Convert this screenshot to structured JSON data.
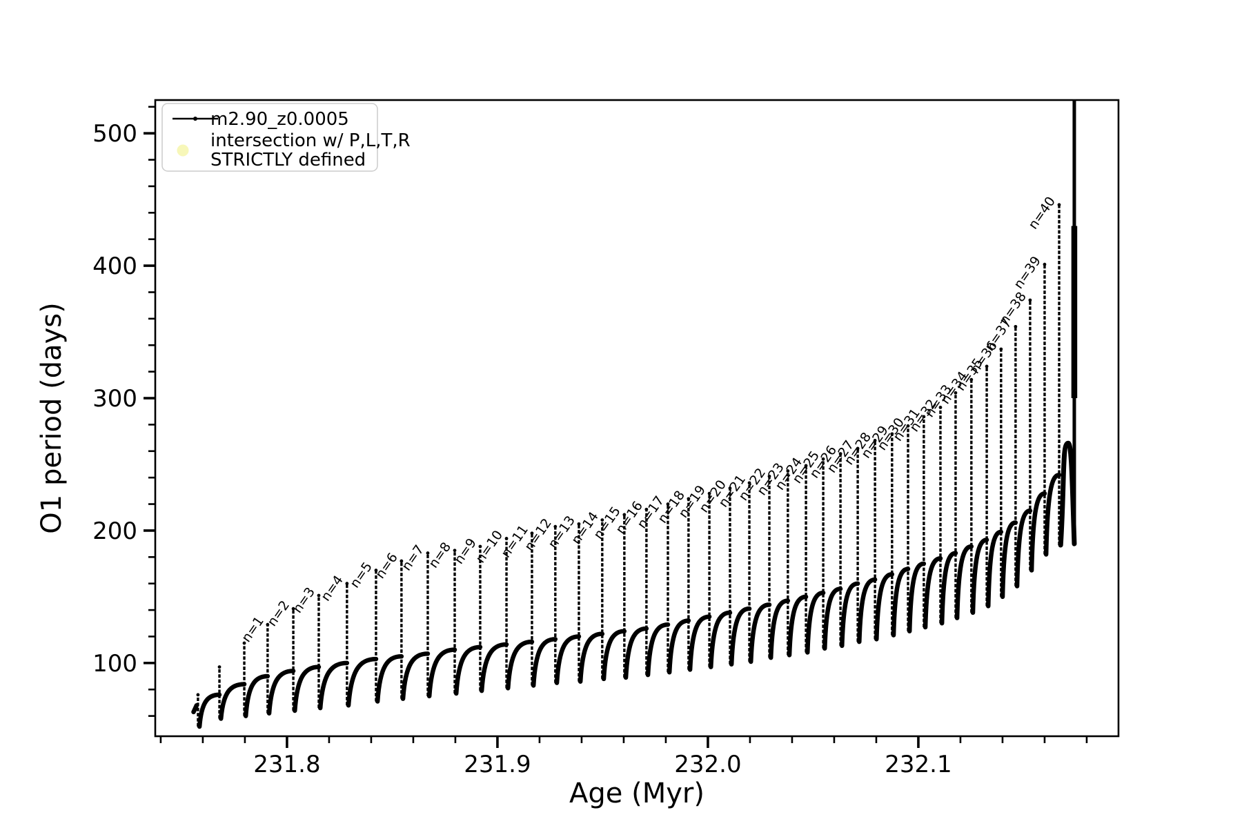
{
  "figure": {
    "background": "#ffffff"
  },
  "legend": {
    "series_label": "m2.90_z0.0005",
    "intersection_label_line1": "intersection w/ P,L,T,R",
    "intersection_label_line2": "STRICTLY defined",
    "marker_color": "#f7f7b9",
    "line_color": "#000000",
    "border_color": "#cccccc"
  },
  "chart_data": {
    "type": "line",
    "title": "",
    "xlabel": "Age (Myr)",
    "ylabel": "O1 period (days)",
    "xlim": [
      231.7374,
      232.1951
    ],
    "ylim": [
      44.7,
      525.1
    ],
    "x_major_ticks": [
      231.8,
      231.9,
      232.0,
      232.1
    ],
    "x_tick_labels": [
      "231.8",
      "231.9",
      "232.0",
      "232.1"
    ],
    "x_minor_step": 0.02,
    "y_major_ticks": [
      100,
      200,
      300,
      400,
      500
    ],
    "y_tick_labels": [
      "100",
      "200",
      "300",
      "400",
      "500"
    ],
    "y_minor_step": 20,
    "grid": false,
    "legend_position": "upper left",
    "series_name": "m2.90_z0.0005",
    "line_color": "#000000",
    "start": {
      "age": 231.7556,
      "value": 63
    },
    "pulses": [
      {
        "n": null,
        "age": 231.7577,
        "peak": 76,
        "dip": 52,
        "base_before": 68
      },
      {
        "n": null,
        "age": 231.7679,
        "peak": 97,
        "dip": 58,
        "base_before": 76
      },
      {
        "n": null,
        "age": 231.7797,
        "peak": 115,
        "dip": 60,
        "base_before": 84
      },
      {
        "n": 1,
        "age": 231.7908,
        "peak": 129,
        "dip": 62,
        "base_before": 90
      },
      {
        "n": 2,
        "age": 231.803,
        "peak": 141,
        "dip": 64,
        "base_before": 94
      },
      {
        "n": 3,
        "age": 231.8151,
        "peak": 151,
        "dip": 66,
        "base_before": 97
      },
      {
        "n": 4,
        "age": 231.8285,
        "peak": 160,
        "dip": 68,
        "base_before": 100
      },
      {
        "n": 5,
        "age": 231.8423,
        "peak": 170,
        "dip": 71,
        "base_before": 103
      },
      {
        "n": 6,
        "age": 231.8544,
        "peak": 177,
        "dip": 73,
        "base_before": 105
      },
      {
        "n": 7,
        "age": 231.8669,
        "peak": 183,
        "dip": 75,
        "base_before": 107
      },
      {
        "n": 8,
        "age": 231.8797,
        "peak": 185,
        "dip": 77,
        "base_before": 110
      },
      {
        "n": 9,
        "age": 231.8918,
        "peak": 188,
        "dip": 79,
        "base_before": 112
      },
      {
        "n": 10,
        "age": 231.9043,
        "peak": 194,
        "dip": 81,
        "base_before": 114
      },
      {
        "n": 11,
        "age": 231.9164,
        "peak": 198,
        "dip": 83,
        "base_before": 116
      },
      {
        "n": 12,
        "age": 231.9275,
        "peak": 203,
        "dip": 85,
        "base_before": 118
      },
      {
        "n": 13,
        "age": 231.9387,
        "peak": 205,
        "dip": 86,
        "base_before": 120
      },
      {
        "n": 14,
        "age": 231.9498,
        "peak": 208,
        "dip": 88,
        "base_before": 122
      },
      {
        "n": 15,
        "age": 231.9603,
        "peak": 212,
        "dip": 89,
        "base_before": 124
      },
      {
        "n": 16,
        "age": 231.9708,
        "peak": 216,
        "dip": 91,
        "base_before": 126
      },
      {
        "n": 17,
        "age": 231.981,
        "peak": 220,
        "dip": 93,
        "base_before": 129
      },
      {
        "n": 18,
        "age": 231.9908,
        "peak": 224,
        "dip": 95,
        "base_before": 132
      },
      {
        "n": 19,
        "age": 232.0007,
        "peak": 228,
        "dip": 97,
        "base_before": 135
      },
      {
        "n": 20,
        "age": 232.0105,
        "peak": 232,
        "dip": 99,
        "base_before": 138
      },
      {
        "n": 21,
        "age": 232.0197,
        "peak": 236,
        "dip": 101,
        "base_before": 141
      },
      {
        "n": 22,
        "age": 232.0292,
        "peak": 241,
        "dip": 104,
        "base_before": 144
      },
      {
        "n": 23,
        "age": 232.038,
        "peak": 245,
        "dip": 106,
        "base_before": 147
      },
      {
        "n": 24,
        "age": 232.0466,
        "peak": 249,
        "dip": 108,
        "base_before": 150
      },
      {
        "n": 25,
        "age": 232.0548,
        "peak": 254,
        "dip": 111,
        "base_before": 153
      },
      {
        "n": 26,
        "age": 232.063,
        "peak": 258,
        "dip": 113,
        "base_before": 156
      },
      {
        "n": 27,
        "age": 232.0712,
        "peak": 262,
        "dip": 116,
        "base_before": 160
      },
      {
        "n": 28,
        "age": 232.0794,
        "peak": 268,
        "dip": 118,
        "base_before": 163
      },
      {
        "n": 29,
        "age": 232.0875,
        "peak": 273,
        "dip": 121,
        "base_before": 167
      },
      {
        "n": 30,
        "age": 232.0951,
        "peak": 279,
        "dip": 124,
        "base_before": 171
      },
      {
        "n": 31,
        "age": 232.1026,
        "peak": 286,
        "dip": 127,
        "base_before": 175
      },
      {
        "n": 32,
        "age": 232.1105,
        "peak": 293,
        "dip": 130,
        "base_before": 179
      },
      {
        "n": 33,
        "age": 232.1177,
        "peak": 304,
        "dip": 134,
        "base_before": 183
      },
      {
        "n": 34,
        "age": 232.1252,
        "peak": 314,
        "dip": 138,
        "base_before": 188
      },
      {
        "n": 35,
        "age": 232.1325,
        "peak": 324,
        "dip": 143,
        "base_before": 193
      },
      {
        "n": 36,
        "age": 232.1393,
        "peak": 337,
        "dip": 150,
        "base_before": 199
      },
      {
        "n": 37,
        "age": 232.1462,
        "peak": 354,
        "dip": 158,
        "base_before": 206
      },
      {
        "n": 38,
        "age": 232.1531,
        "peak": 374,
        "dip": 170,
        "base_before": 215
      },
      {
        "n": 39,
        "age": 232.16,
        "peak": 401,
        "dip": 182,
        "base_before": 228
      },
      {
        "n": 40,
        "age": 232.1669,
        "peak": 446,
        "dip": 189,
        "base_before": 242
      }
    ],
    "final_event": {
      "age": 232.1741,
      "peak_age": 232.1712,
      "pre_peak": 266,
      "value_bottom": 190,
      "value_top": 525,
      "clipped_at_top": true
    }
  }
}
